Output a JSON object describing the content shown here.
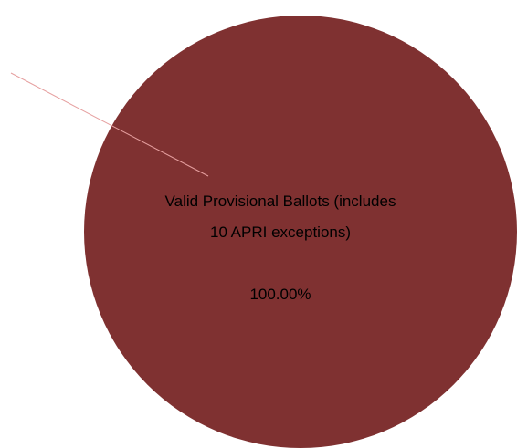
{
  "chart_data": {
    "type": "pie",
    "categories": [
      "Valid Provisional Ballots (includes 10 APRI exceptions)"
    ],
    "values": [
      100
    ],
    "value_labels": [
      "100.00%"
    ],
    "colors": [
      "#7f3131"
    ]
  }
}
